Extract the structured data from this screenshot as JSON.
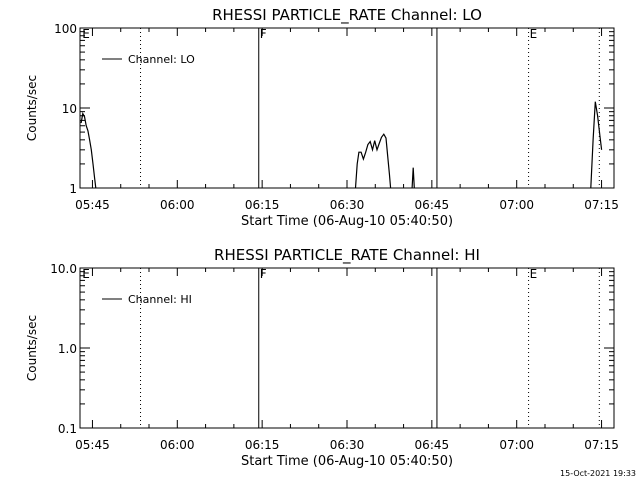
{
  "timestamp": "15-Oct-2021 19:33",
  "chart_data": [
    {
      "type": "line",
      "title": "RHESSI PARTICLE_RATE Channel: LO",
      "xlabel": "Start Time (06-Aug-10 05:40:50)",
      "ylabel": "Counts/sec",
      "yscale": "log",
      "ylim": [
        1,
        100
      ],
      "xlim": [
        2.8,
        97.2
      ],
      "x_tick_labels": [
        "05:45",
        "06:00",
        "06:15",
        "06:30",
        "06:45",
        "07:00",
        "07:15"
      ],
      "x_tick_values": [
        5,
        20,
        35,
        50,
        65,
        80,
        95
      ],
      "y_tick_labels": [
        "1",
        "10",
        "100"
      ],
      "y_tick_values": [
        1,
        10,
        100
      ],
      "legend": {
        "label": "Channel: LO",
        "position": "top-left"
      },
      "markers": [
        {
          "x": 13.5,
          "style": "dotted",
          "label": ""
        },
        {
          "x": 34.4,
          "style": "solid",
          "label": "F"
        },
        {
          "x": 65.9,
          "style": "solid",
          "label": ""
        },
        {
          "x": 82.1,
          "style": "dotted",
          "label": "E"
        },
        {
          "x": 94.6,
          "style": "dotted",
          "label": ""
        }
      ],
      "corner_labels": [
        {
          "x": 3.2,
          "label": "E"
        }
      ],
      "series": [
        {
          "name": "Channel: LO",
          "segments": [
            [
              [
                3.0,
                6.5
              ],
              [
                3.3,
                8.5
              ],
              [
                3.6,
                7.8
              ],
              [
                3.9,
                6.0
              ],
              [
                4.2,
                5.2
              ],
              [
                4.5,
                4.0
              ],
              [
                4.8,
                3.0
              ],
              [
                5.1,
                2.0
              ],
              [
                5.4,
                1.3
              ],
              [
                5.6,
                1.0
              ]
            ],
            [
              [
                51.5,
                1.0
              ],
              [
                51.8,
                2.0
              ],
              [
                52.1,
                2.8
              ],
              [
                52.5,
                2.8
              ],
              [
                52.9,
                2.3
              ],
              [
                53.3,
                2.8
              ],
              [
                53.7,
                3.5
              ],
              [
                54.1,
                3.8
              ],
              [
                54.5,
                3.0
              ],
              [
                54.9,
                3.9
              ],
              [
                55.3,
                3.0
              ],
              [
                55.7,
                3.6
              ],
              [
                56.1,
                4.3
              ],
              [
                56.5,
                4.7
              ],
              [
                56.9,
                4.2
              ],
              [
                57.2,
                2.5
              ],
              [
                57.5,
                1.5
              ],
              [
                57.7,
                1.0
              ]
            ],
            [
              [
                61.5,
                1.0
              ],
              [
                61.7,
                1.8
              ],
              [
                61.9,
                1.0
              ]
            ],
            [
              [
                93.1,
                1.0
              ],
              [
                93.5,
                4.0
              ],
              [
                93.9,
                12.0
              ],
              [
                94.3,
                8.0
              ],
              [
                94.7,
                4.5
              ],
              [
                95.0,
                3.0
              ]
            ]
          ]
        }
      ]
    },
    {
      "type": "line",
      "title": "RHESSI PARTICLE_RATE Channel: HI",
      "xlabel": "Start Time (06-Aug-10 05:40:50)",
      "ylabel": "Counts/sec",
      "yscale": "log",
      "ylim": [
        0.1,
        10
      ],
      "xlim": [
        2.8,
        97.2
      ],
      "x_tick_labels": [
        "05:45",
        "06:00",
        "06:15",
        "06:30",
        "06:45",
        "07:00",
        "07:15"
      ],
      "x_tick_values": [
        5,
        20,
        35,
        50,
        65,
        80,
        95
      ],
      "y_tick_labels": [
        "0.1",
        "1.0",
        "10.0"
      ],
      "y_tick_values": [
        0.1,
        1,
        10
      ],
      "legend": {
        "label": "Channel: HI",
        "position": "top-left"
      },
      "markers": [
        {
          "x": 13.5,
          "style": "dotted",
          "label": ""
        },
        {
          "x": 34.4,
          "style": "solid",
          "label": "F"
        },
        {
          "x": 65.9,
          "style": "solid",
          "label": ""
        },
        {
          "x": 82.1,
          "style": "dotted",
          "label": "E"
        },
        {
          "x": 94.6,
          "style": "dotted",
          "label": ""
        }
      ],
      "corner_labels": [
        {
          "x": 3.2,
          "label": "E"
        }
      ],
      "series": [
        {
          "name": "Channel: HI",
          "segments": []
        }
      ]
    }
  ]
}
